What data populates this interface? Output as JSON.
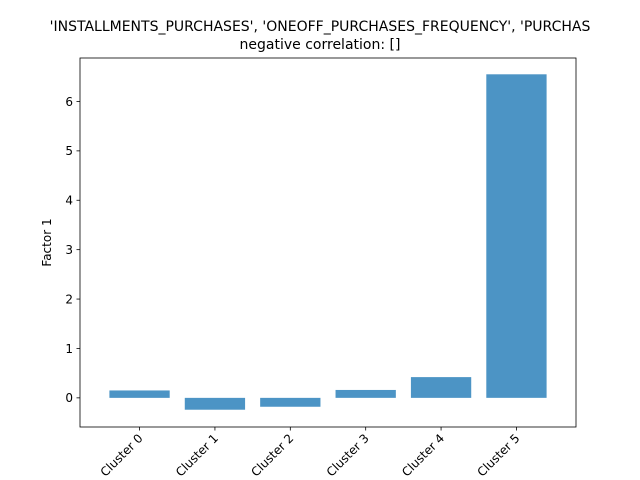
{
  "chart_data": {
    "type": "bar",
    "title_lines": [
      "'INSTALLMENTS_PURCHASES', 'ONEOFF_PURCHASES_FREQUENCY', 'PURCHAS",
      "negative correlation: []"
    ],
    "xlabel": "",
    "ylabel": "Factor 1",
    "categories": [
      "Cluster 0",
      "Cluster 1",
      "Cluster 2",
      "Cluster 3",
      "Cluster 4",
      "Cluster 5"
    ],
    "values": [
      0.15,
      -0.24,
      -0.18,
      0.16,
      0.42,
      6.55
    ],
    "ylim": [
      -0.59,
      6.88
    ],
    "yticks": [
      0,
      1,
      2,
      3,
      4,
      5,
      6
    ],
    "bar_color": "#4c94c5",
    "grid": false,
    "legend": "none"
  }
}
